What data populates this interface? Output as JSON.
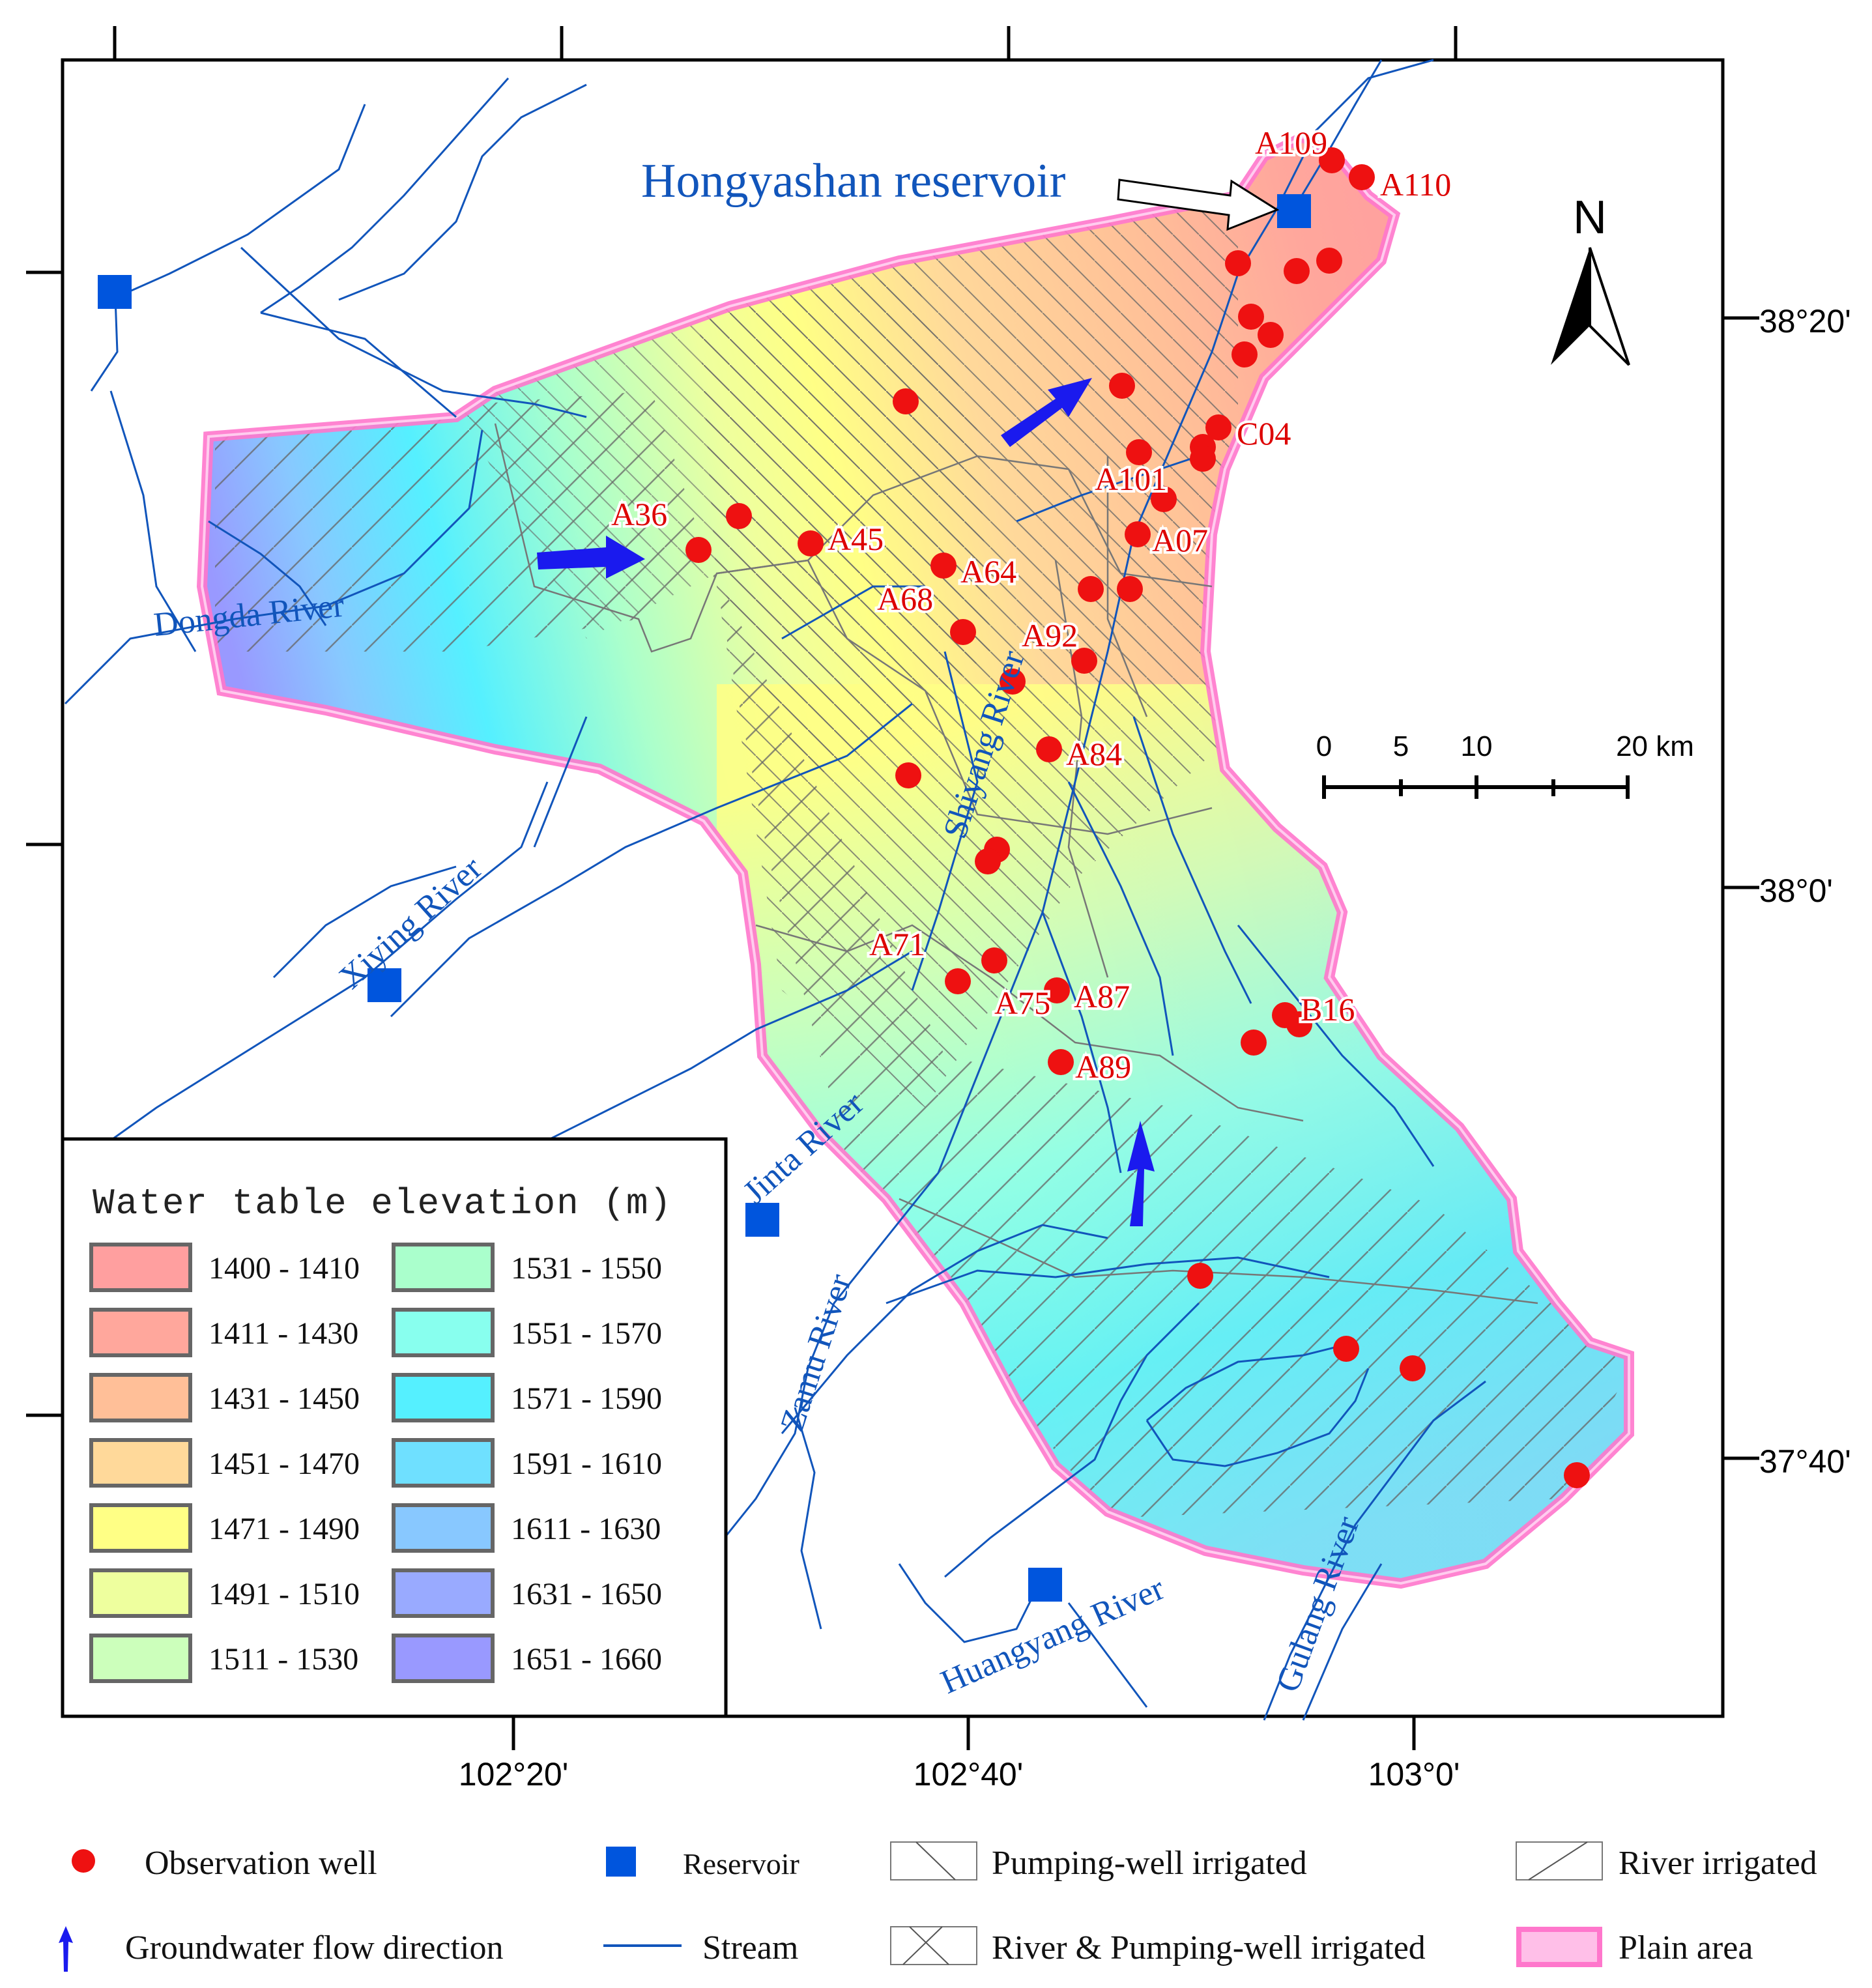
{
  "title": "Hongyashan reservoir",
  "north": "N",
  "scale": {
    "ticks": [
      "0",
      "5",
      "10",
      "20 km"
    ]
  },
  "lat_labels": [
    "38°20'",
    "38°0'",
    "37°40'"
  ],
  "lon_labels": [
    "102°20'",
    "102°40'",
    "103°0'"
  ],
  "rivers": [
    "Dongda River",
    "Xiying River",
    "Jinta River",
    "Zamu River",
    "Shiyang River",
    "Huangyang River",
    "Gulang River"
  ],
  "wells": [
    "A109",
    "A110",
    "C04",
    "A101",
    "A07",
    "A36",
    "A45",
    "A64",
    "A68",
    "A92",
    "A84",
    "A71",
    "A75",
    "A87",
    "A89",
    "B16"
  ],
  "legend": {
    "title": "Water table  elevation (m)",
    "classes": [
      {
        "label": "1400 - 1410",
        "color": "#ff9f9f"
      },
      {
        "label": "1411 - 1430",
        "color": "#ffa79c"
      },
      {
        "label": "1431 - 1450",
        "color": "#ffbf98"
      },
      {
        "label": "1451 - 1470",
        "color": "#ffd99a"
      },
      {
        "label": "1471 - 1490",
        "color": "#ffff85"
      },
      {
        "label": "1491 - 1510",
        "color": "#eeff9e"
      },
      {
        "label": "1511 - 1530",
        "color": "#ccffbb"
      },
      {
        "label": "1531 - 1550",
        "color": "#aaffcc"
      },
      {
        "label": "1551 - 1570",
        "color": "#88ffee"
      },
      {
        "label": "1571 - 1590",
        "color": "#55f0ff"
      },
      {
        "label": "1591 - 1610",
        "color": "#6fe0ff"
      },
      {
        "label": "1611 - 1630",
        "color": "#88c8ff"
      },
      {
        "label": "1631 - 1650",
        "color": "#99aaff"
      },
      {
        "label": "1651 - 1660",
        "color": "#9999ff"
      }
    ]
  },
  "bottom_legend": {
    "observation_well": "Observation well",
    "reservoir": "Reservoir",
    "pumping": "Pumping-well irrigated",
    "river_irrigated": "River irrigated",
    "flow": "Groundwater flow direction",
    "stream": "Stream",
    "river_pumping": "River & Pumping-well irrigated",
    "plain": "Plain area"
  },
  "colors": {
    "well": "#ee1111",
    "reservoir": "#0055dd",
    "stream": "#1155bb",
    "plain_border": "#ff77cc",
    "arrow": "#1a1aee",
    "label_blue": "#1155bb"
  }
}
